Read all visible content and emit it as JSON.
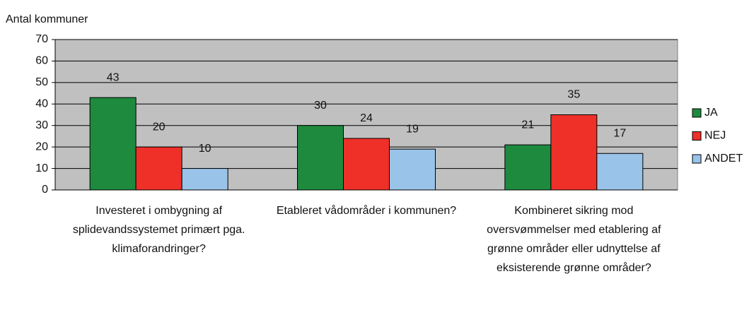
{
  "chart_data": {
    "type": "bar",
    "y_label": "Antal kommuner",
    "categories": [
      "Investeret i ombygning af splidevandssystemet primært pga. klimaforandringer?",
      "Etableret vådområder i kommunen?",
      "Kombineret sikring mod oversvømmelser med etablering af grønne områder eller udnyttelse af eksisterende grønne områder?"
    ],
    "series": [
      {
        "name": "JA",
        "color": "#1e8a3e",
        "values": [
          43,
          30,
          21
        ]
      },
      {
        "name": "NEJ",
        "color": "#ee3029",
        "values": [
          20,
          24,
          35
        ]
      },
      {
        "name": "ANDET",
        "color": "#99c3e8",
        "values": [
          10,
          19,
          17
        ]
      }
    ],
    "ylim": [
      0,
      70
    ],
    "yticks": [
      0,
      10,
      20,
      30,
      40,
      50,
      60,
      70
    ],
    "grid": true,
    "legend": "right"
  }
}
